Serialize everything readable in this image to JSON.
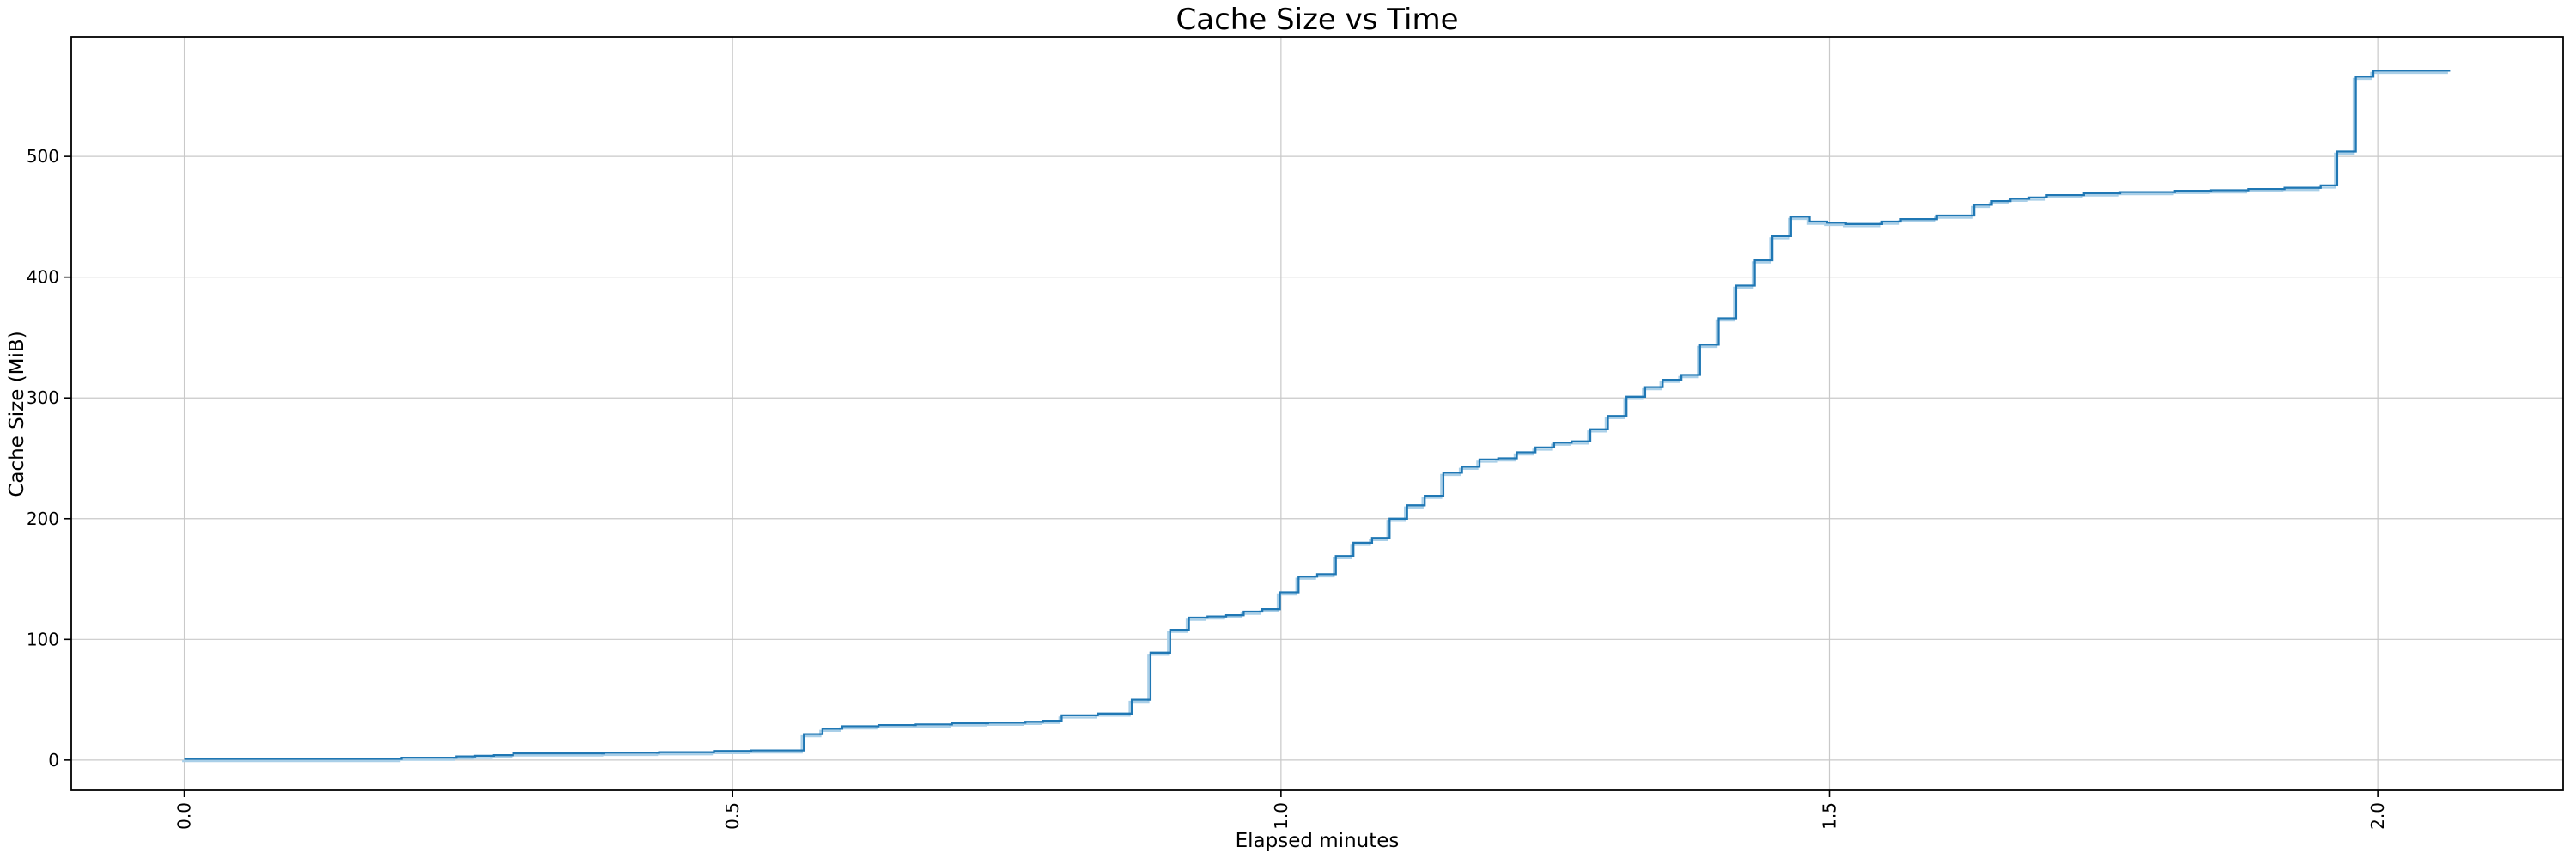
{
  "figure": {
    "title": "Cache Size vs Time",
    "xlabel": "Elapsed minutes",
    "ylabel": "Cache Size (MiB)"
  },
  "chart_data": {
    "type": "line",
    "title": "Cache Size vs Time",
    "xlabel": "Elapsed minutes",
    "ylabel": "Cache Size (MiB)",
    "step_mode": "post",
    "grid": true,
    "legend_position": "none",
    "xlim": [
      -0.103,
      2.169
    ],
    "ylim": [
      -25,
      599
    ],
    "x_tick_values": [
      0.0,
      0.5,
      1.0,
      1.5,
      2.0
    ],
    "x_tick_labels": [
      "0.0",
      "0.5",
      "1.0",
      "1.5",
      "2.0"
    ],
    "x_tick_rotation": 90,
    "y_tick_values": [
      0,
      100,
      200,
      300,
      400,
      500
    ],
    "y_tick_labels": [
      "0",
      "100",
      "200",
      "300",
      "400",
      "500"
    ],
    "colors": {
      "line": "#1f77b4",
      "line_halo": "#a9cfe8",
      "grid": "#c9c9c9",
      "spine": "#000000",
      "text": "#000000",
      "background": "#ffffff"
    },
    "series": [
      {
        "name": "cache-size",
        "color": "#1f77b4",
        "points": [
          [
            0.0,
            1
          ],
          [
            0.198,
            2
          ],
          [
            0.248,
            3
          ],
          [
            0.265,
            3.5
          ],
          [
            0.282,
            4
          ],
          [
            0.3,
            5.5
          ],
          [
            0.383,
            6
          ],
          [
            0.433,
            6.5
          ],
          [
            0.483,
            7.5
          ],
          [
            0.517,
            8
          ],
          [
            0.565,
            21.5
          ],
          [
            0.582,
            26
          ],
          [
            0.6,
            28
          ],
          [
            0.633,
            29
          ],
          [
            0.667,
            29.5
          ],
          [
            0.7,
            30.5
          ],
          [
            0.733,
            31
          ],
          [
            0.767,
            31.7
          ],
          [
            0.783,
            32.5
          ],
          [
            0.8,
            37
          ],
          [
            0.833,
            38.5
          ],
          [
            0.864,
            50
          ],
          [
            0.881,
            89
          ],
          [
            0.899,
            108
          ],
          [
            0.916,
            118
          ],
          [
            0.933,
            119
          ],
          [
            0.95,
            120
          ],
          [
            0.966,
            123
          ],
          [
            0.983,
            125
          ],
          [
            0.999,
            139
          ],
          [
            1.016,
            152
          ],
          [
            1.033,
            154
          ],
          [
            1.05,
            169
          ],
          [
            1.066,
            180
          ],
          [
            1.083,
            184
          ],
          [
            1.099,
            200
          ],
          [
            1.115,
            211
          ],
          [
            1.131,
            219
          ],
          [
            1.148,
            238
          ],
          [
            1.165,
            243
          ],
          [
            1.181,
            249
          ],
          [
            1.198,
            250
          ],
          [
            1.215,
            255
          ],
          [
            1.232,
            259
          ],
          [
            1.249,
            263
          ],
          [
            1.265,
            264
          ],
          [
            1.282,
            274
          ],
          [
            1.298,
            285
          ],
          [
            1.315,
            301
          ],
          [
            1.332,
            309
          ],
          [
            1.348,
            315
          ],
          [
            1.365,
            319
          ],
          [
            1.382,
            344
          ],
          [
            1.399,
            366
          ],
          [
            1.415,
            393
          ],
          [
            1.432,
            414
          ],
          [
            1.448,
            434
          ],
          [
            1.465,
            450
          ],
          [
            1.482,
            446
          ],
          [
            1.498,
            445
          ],
          [
            1.515,
            444
          ],
          [
            1.548,
            446
          ],
          [
            1.565,
            448
          ],
          [
            1.598,
            451
          ],
          [
            1.632,
            460
          ],
          [
            1.648,
            463
          ],
          [
            1.665,
            465
          ],
          [
            1.682,
            466
          ],
          [
            1.698,
            468
          ],
          [
            1.732,
            469.5
          ],
          [
            1.765,
            470.5
          ],
          [
            1.815,
            471.5
          ],
          [
            1.848,
            472
          ],
          [
            1.882,
            473
          ],
          [
            1.915,
            474
          ],
          [
            1.948,
            476
          ],
          [
            1.963,
            504
          ],
          [
            1.98,
            566
          ],
          [
            1.996,
            571
          ],
          [
            2.066,
            571
          ]
        ]
      }
    ]
  }
}
